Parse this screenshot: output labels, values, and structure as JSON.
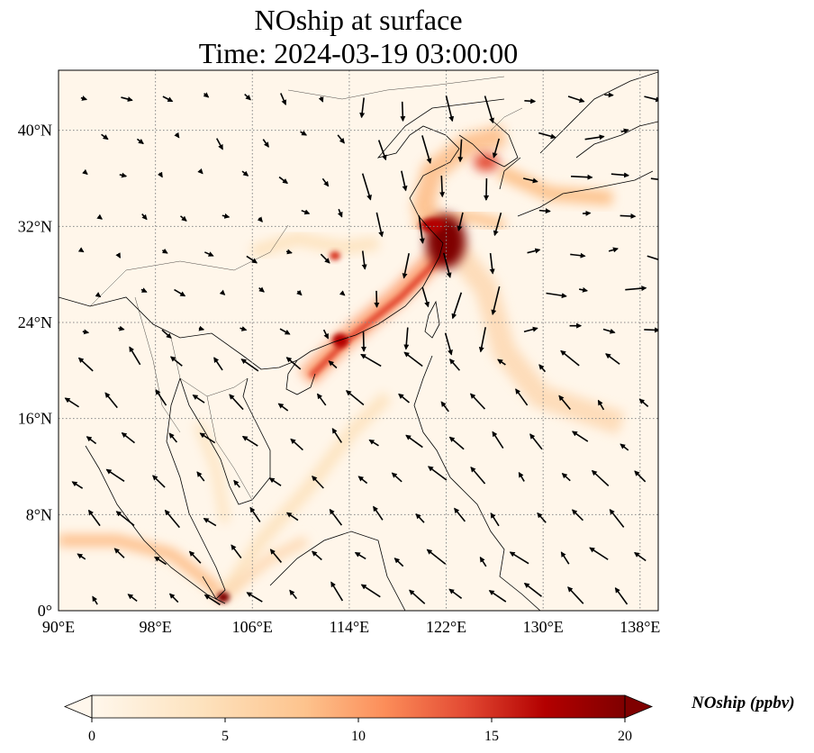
{
  "title_line1": "NOship at surface",
  "title_line2": "Time: 2024-03-19 03:00:00",
  "map": {
    "lon_range": [
      90,
      139.5
    ],
    "lat_range": [
      0,
      45
    ],
    "lon_ticks": [
      {
        "value": 90,
        "label": "90°E"
      },
      {
        "value": 98,
        "label": "98°E"
      },
      {
        "value": 106,
        "label": "106°E"
      },
      {
        "value": 114,
        "label": "114°E"
      },
      {
        "value": 122,
        "label": "122°E"
      },
      {
        "value": 130,
        "label": "130°E"
      },
      {
        "value": 138,
        "label": "138°E"
      }
    ],
    "lat_ticks": [
      {
        "value": 0,
        "label": "0°"
      },
      {
        "value": 8,
        "label": "8°N"
      },
      {
        "value": 16,
        "label": "16°N"
      },
      {
        "value": 24,
        "label": "24°N"
      },
      {
        "value": 32,
        "label": "32°N"
      },
      {
        "value": 40,
        "label": "40°N"
      }
    ],
    "gridlines": true,
    "colormap": "OrRd",
    "colors": {
      "low": "#fff7ec",
      "mid": "#fc8d59",
      "high": "#7f0000",
      "land_outline": "#000000",
      "grid": "#888888"
    }
  },
  "colorbar": {
    "label": "NOship (ppbv)",
    "min": 0,
    "max": 20,
    "extend": "both",
    "ticks": [
      {
        "value": 0,
        "label": "0"
      },
      {
        "value": 5,
        "label": "5"
      },
      {
        "value": 10,
        "label": "10"
      },
      {
        "value": 15,
        "label": "15"
      },
      {
        "value": 20,
        "label": "20"
      }
    ]
  }
}
